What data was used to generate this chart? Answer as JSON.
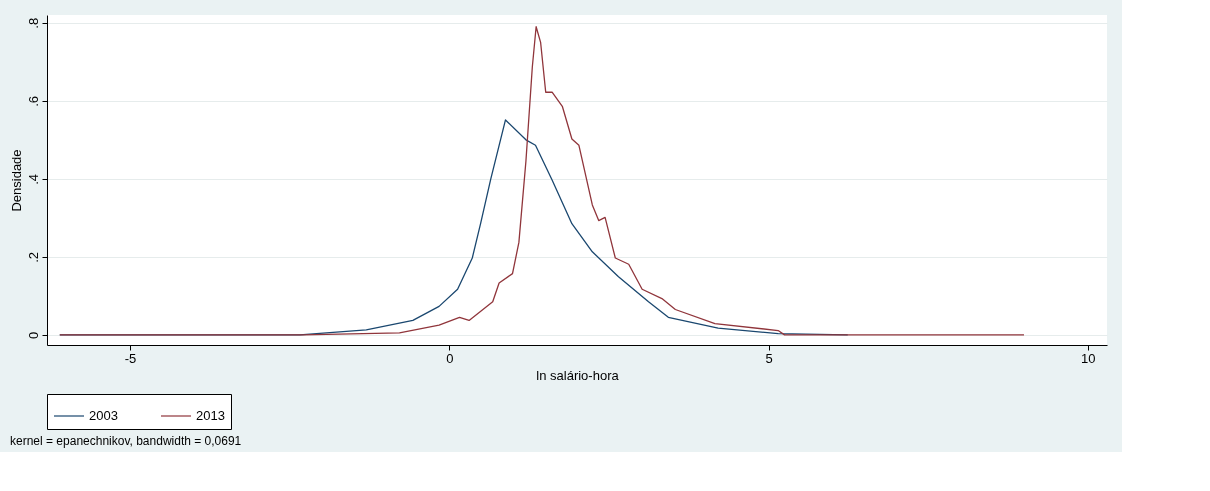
{
  "chart_data": {
    "type": "line",
    "xlabel": "ln salário-hora",
    "ylabel": "Densidade",
    "xlim": [
      -6.3,
      10.3
    ],
    "ylim": [
      -0.026,
      0.82
    ],
    "xticks": [
      -5,
      0,
      5,
      10
    ],
    "yticks": [
      0,
      {
        "value": 0.2,
        "label": ".2"
      },
      {
        "value": 0.4,
        "label": ".4"
      },
      {
        "value": 0.6,
        "label": ".6"
      },
      {
        "value": 0.8,
        "label": ".8"
      }
    ],
    "grid": "y",
    "legend": "bottom",
    "line_style": "solid",
    "annotations": [
      "kernel = epanechnikov, bandwidth = 0,0691"
    ],
    "series": [
      {
        "name": "2003",
        "color": "#1a476f",
        "x": [
          -6.1,
          -2.34,
          -1.3,
          -0.57,
          -0.16,
          0.13,
          0.36,
          0.49,
          0.65,
          0.88,
          1.2,
          1.35,
          1.61,
          1.92,
          2.24,
          2.65,
          3.12,
          3.43,
          4.21,
          5.15,
          6.24
        ],
        "values": [
          0,
          0,
          0.013,
          0.037,
          0.073,
          0.117,
          0.197,
          0.285,
          0.4,
          0.551,
          0.5,
          0.486,
          0.397,
          0.285,
          0.213,
          0.149,
          0.085,
          0.045,
          0.017,
          0.003,
          0
        ]
      },
      {
        "name": "2013",
        "color": "#90353b",
        "x": [
          -6.1,
          -2.3,
          -0.78,
          -0.16,
          0.16,
          0.31,
          0.68,
          0.78,
          0.99,
          1.09,
          1.2,
          1.3,
          1.36,
          1.43,
          1.51,
          1.61,
          1.77,
          1.92,
          2.03,
          2.24,
          2.34,
          2.44,
          2.6,
          2.81,
          3.02,
          3.33,
          3.54,
          4.16,
          5.15,
          5.25,
          9.0
        ],
        "values": [
          0,
          0,
          0.005,
          0.025,
          0.045,
          0.037,
          0.085,
          0.133,
          0.157,
          0.237,
          0.445,
          0.686,
          0.79,
          0.75,
          0.622,
          0.622,
          0.586,
          0.502,
          0.486,
          0.333,
          0.293,
          0.301,
          0.197,
          0.181,
          0.117,
          0.093,
          0.065,
          0.029,
          0.011,
          0,
          0
        ]
      }
    ]
  }
}
